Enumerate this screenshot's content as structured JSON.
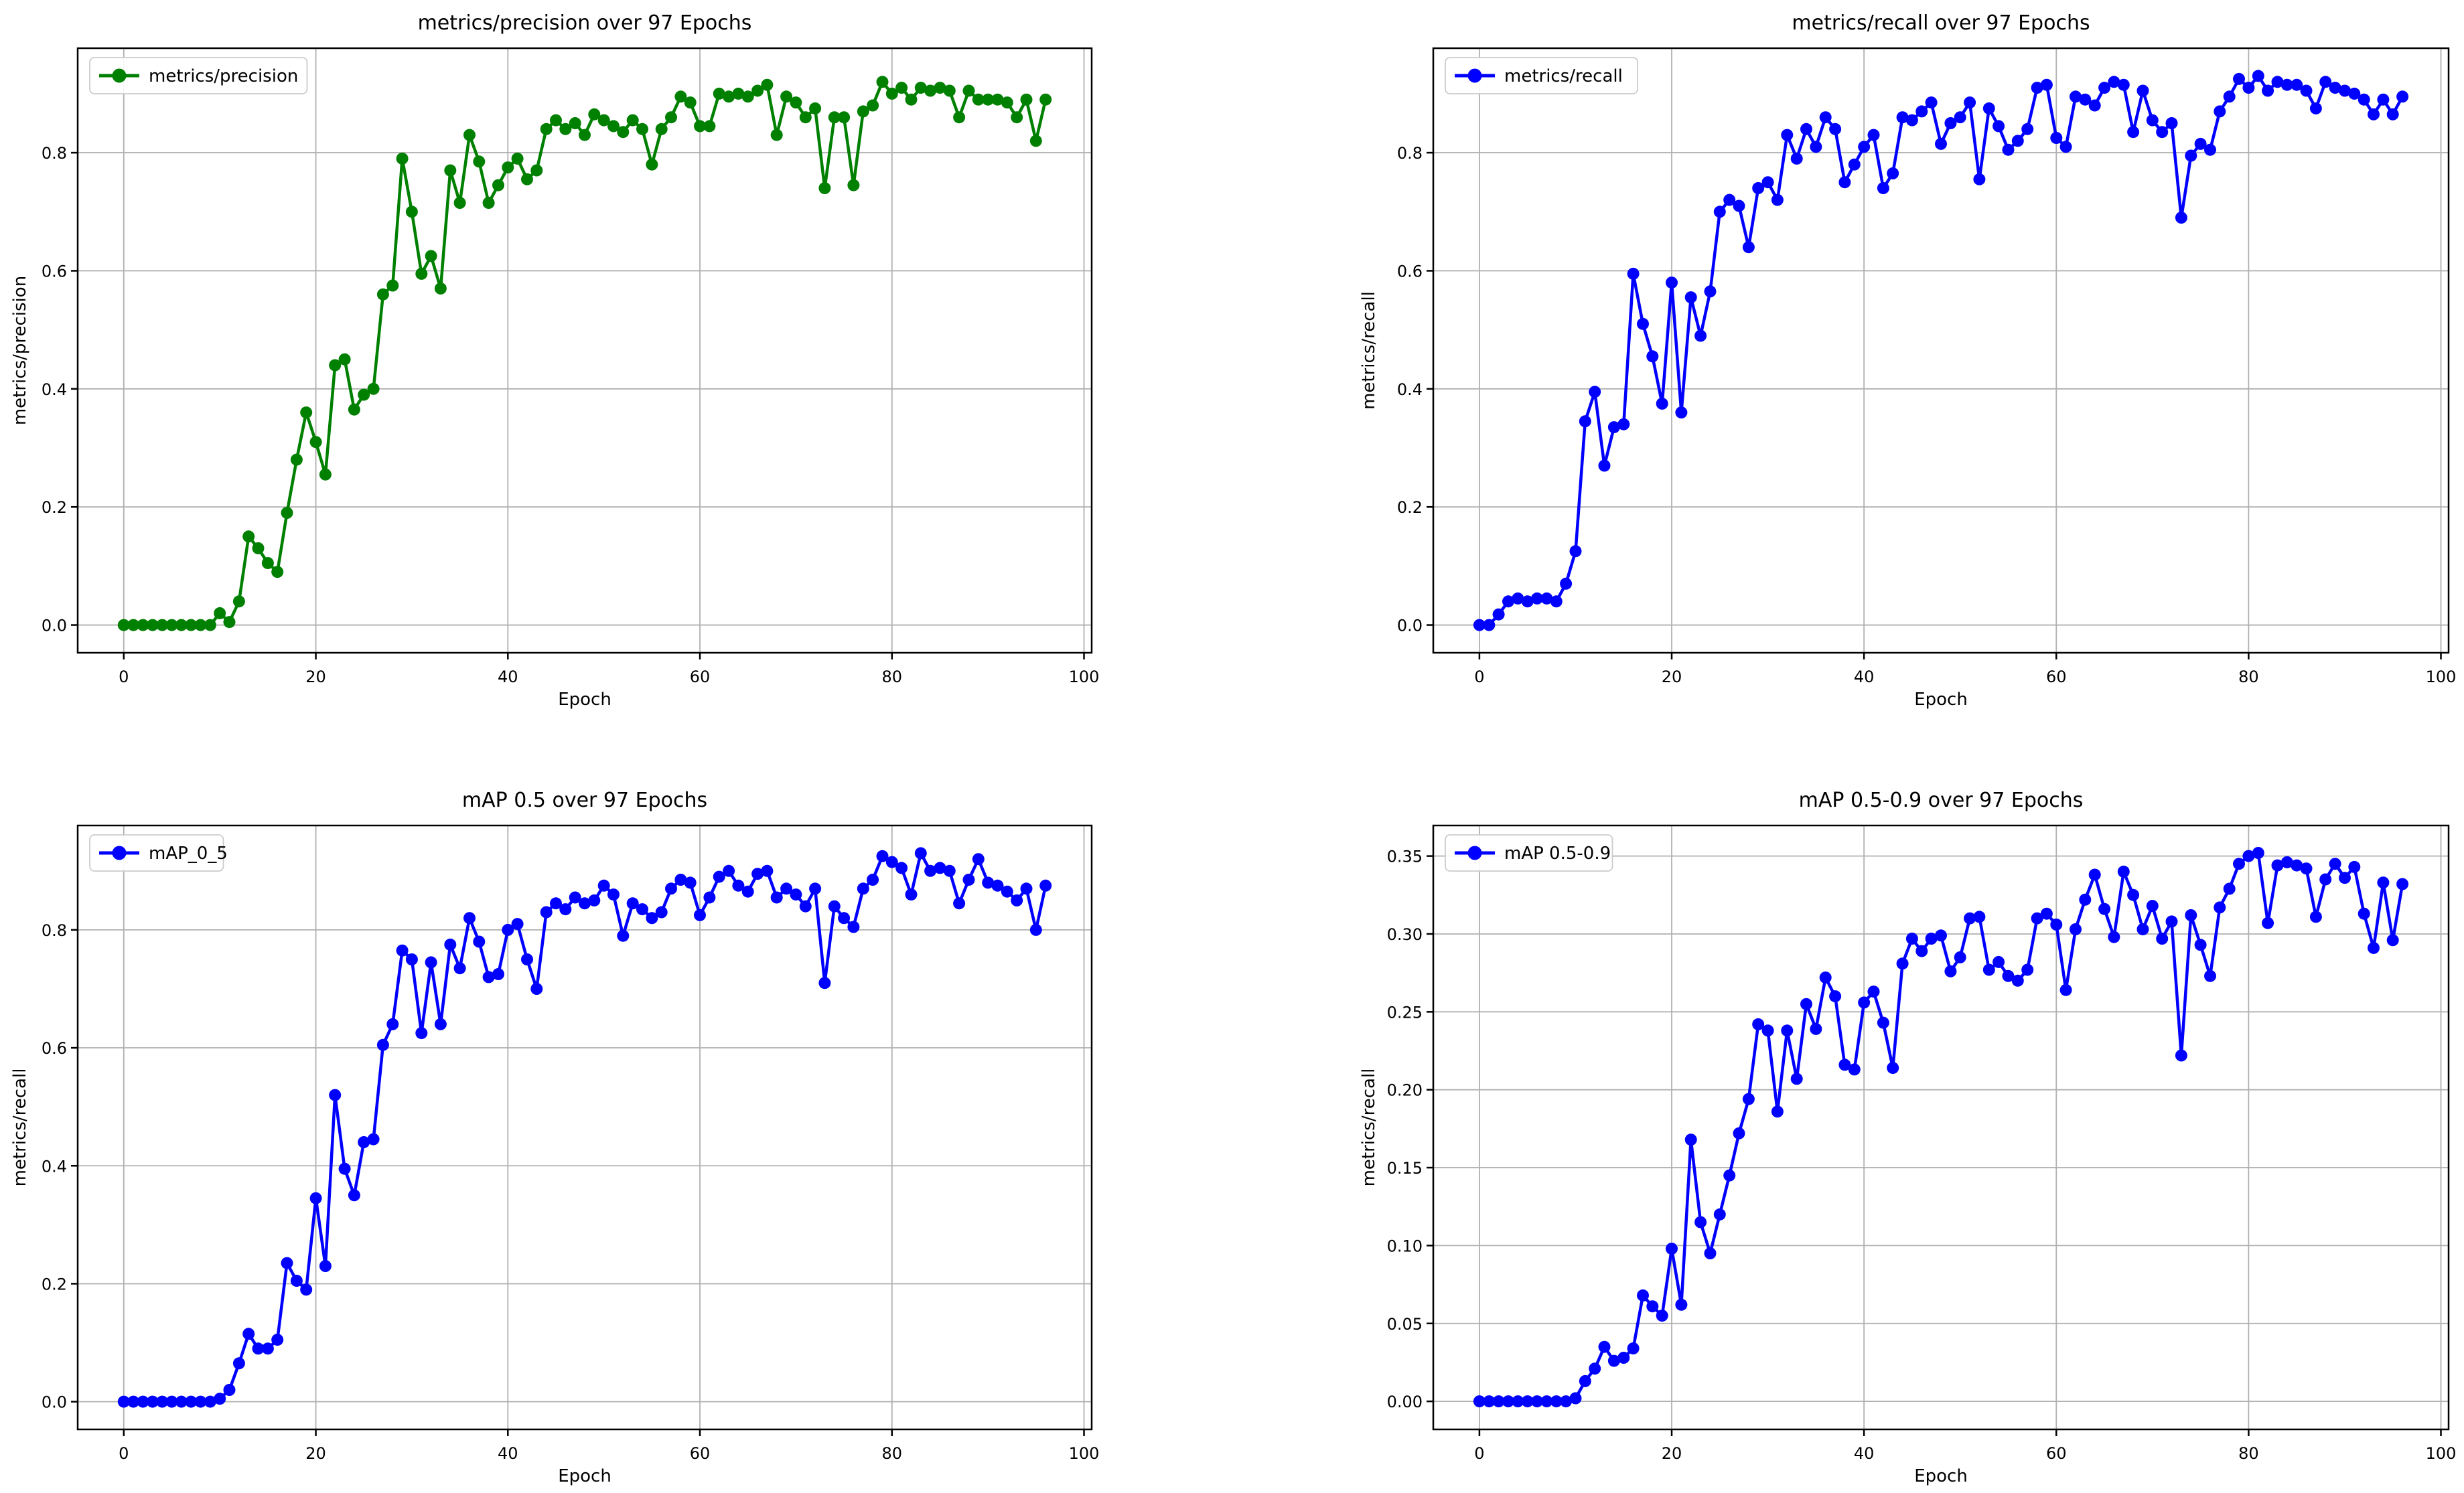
{
  "figure": {
    "background": "#ffffff",
    "grid_color": "#b0b0b0",
    "spine_color": "#000000",
    "legend_border_color": "#cccccc",
    "accent_green": "#008000",
    "accent_blue": "#0000ff"
  },
  "chart_data": [
    {
      "id": "precision",
      "type": "line",
      "title": "metrics/precision over 97 Epochs",
      "xlabel": "Epoch",
      "ylabel": "metrics/precision",
      "legend": "metrics/precision",
      "legend_position": "upper-left",
      "color": "#008000",
      "grid": true,
      "epochs": 97,
      "xlim": [
        -4.8,
        100.8
      ],
      "ylim": [
        -0.047,
        0.977
      ],
      "x_ticks": [
        0,
        20,
        40,
        60,
        80,
        100
      ],
      "y_ticks": [
        0.0,
        0.2,
        0.4,
        0.6,
        0.8
      ],
      "y_tick_decimals": 1,
      "values": [
        0,
        0,
        0,
        0,
        0,
        0,
        0,
        0,
        0,
        0,
        0.02,
        0.005,
        0.04,
        0.15,
        0.13,
        0.105,
        0.09,
        0.19,
        0.28,
        0.36,
        0.31,
        0.255,
        0.44,
        0.45,
        0.365,
        0.39,
        0.4,
        0.56,
        0.575,
        0.79,
        0.7,
        0.595,
        0.625,
        0.57,
        0.77,
        0.715,
        0.83,
        0.785,
        0.715,
        0.745,
        0.775,
        0.79,
        0.755,
        0.77,
        0.84,
        0.855,
        0.84,
        0.85,
        0.83,
        0.865,
        0.855,
        0.845,
        0.835,
        0.855,
        0.84,
        0.78,
        0.84,
        0.86,
        0.895,
        0.885,
        0.845,
        0.845,
        0.9,
        0.895,
        0.9,
        0.895,
        0.905,
        0.915,
        0.83,
        0.895,
        0.885,
        0.86,
        0.875,
        0.74,
        0.86,
        0.86,
        0.745,
        0.87,
        0.88,
        0.92,
        0.9,
        0.91,
        0.89,
        0.91,
        0.905,
        0.91,
        0.905,
        0.86,
        0.905,
        0.89,
        0.89,
        0.89,
        0.885,
        0.86,
        0.89,
        0.82,
        0.89
      ]
    },
    {
      "id": "recall",
      "type": "line",
      "title": "metrics/recall over 97 Epochs",
      "xlabel": "Epoch",
      "ylabel": "metrics/recall",
      "legend": "metrics/recall",
      "legend_position": "upper-left",
      "color": "#0000ff",
      "grid": true,
      "epochs": 97,
      "xlim": [
        -4.8,
        100.8
      ],
      "ylim": [
        -0.047,
        0.977
      ],
      "x_ticks": [
        0,
        20,
        40,
        60,
        80,
        100
      ],
      "y_ticks": [
        0.0,
        0.2,
        0.4,
        0.6,
        0.8
      ],
      "y_tick_decimals": 1,
      "values": [
        0,
        0,
        0.018,
        0.04,
        0.045,
        0.04,
        0.045,
        0.045,
        0.04,
        0.07,
        0.125,
        0.345,
        0.395,
        0.27,
        0.335,
        0.34,
        0.595,
        0.51,
        0.455,
        0.375,
        0.58,
        0.36,
        0.555,
        0.49,
        0.565,
        0.7,
        0.72,
        0.71,
        0.64,
        0.74,
        0.75,
        0.72,
        0.83,
        0.79,
        0.84,
        0.81,
        0.86,
        0.84,
        0.75,
        0.78,
        0.81,
        0.83,
        0.74,
        0.765,
        0.86,
        0.855,
        0.87,
        0.885,
        0.815,
        0.85,
        0.86,
        0.885,
        0.755,
        0.875,
        0.845,
        0.805,
        0.82,
        0.84,
        0.91,
        0.915,
        0.825,
        0.81,
        0.895,
        0.89,
        0.88,
        0.91,
        0.92,
        0.915,
        0.835,
        0.905,
        0.855,
        0.835,
        0.85,
        0.69,
        0.795,
        0.815,
        0.805,
        0.87,
        0.895,
        0.925,
        0.91,
        0.93,
        0.905,
        0.92,
        0.915,
        0.915,
        0.905,
        0.875,
        0.92,
        0.91,
        0.905,
        0.9,
        0.89,
        0.865,
        0.89,
        0.865,
        0.895
      ]
    },
    {
      "id": "map_0_5",
      "type": "line",
      "title": "mAP 0.5 over 97 Epochs",
      "xlabel": "Epoch",
      "ylabel": "metrics/recall",
      "legend": "mAP_0_5",
      "legend_position": "upper-left",
      "color": "#0000ff",
      "grid": true,
      "epochs": 97,
      "xlim": [
        -4.8,
        100.8
      ],
      "ylim": [
        -0.047,
        0.977
      ],
      "x_ticks": [
        0,
        20,
        40,
        60,
        80,
        100
      ],
      "y_ticks": [
        0.0,
        0.2,
        0.4,
        0.6,
        0.8
      ],
      "y_tick_decimals": 1,
      "values": [
        0,
        0,
        0,
        0,
        0,
        0,
        0,
        0,
        0,
        0,
        0.005,
        0.02,
        0.065,
        0.115,
        0.09,
        0.09,
        0.105,
        0.235,
        0.205,
        0.19,
        0.345,
        0.23,
        0.52,
        0.395,
        0.35,
        0.44,
        0.445,
        0.605,
        0.64,
        0.765,
        0.75,
        0.625,
        0.745,
        0.64,
        0.775,
        0.735,
        0.82,
        0.78,
        0.72,
        0.725,
        0.8,
        0.81,
        0.75,
        0.7,
        0.83,
        0.845,
        0.835,
        0.855,
        0.845,
        0.85,
        0.875,
        0.86,
        0.79,
        0.845,
        0.835,
        0.82,
        0.83,
        0.87,
        0.885,
        0.88,
        0.825,
        0.855,
        0.89,
        0.9,
        0.875,
        0.865,
        0.895,
        0.9,
        0.855,
        0.87,
        0.86,
        0.84,
        0.87,
        0.71,
        0.84,
        0.82,
        0.805,
        0.87,
        0.885,
        0.925,
        0.915,
        0.905,
        0.86,
        0.93,
        0.9,
        0.905,
        0.9,
        0.845,
        0.885,
        0.92,
        0.88,
        0.875,
        0.865,
        0.85,
        0.87,
        0.8,
        0.875
      ]
    },
    {
      "id": "map_0_5_0_9",
      "type": "line",
      "title": "mAP 0.5-0.9 over 97 Epochs",
      "xlabel": "Epoch",
      "ylabel": "metrics/recall",
      "legend": "mAP 0.5-0.9",
      "legend_position": "upper-left",
      "color": "#0000ff",
      "grid": true,
      "epochs": 97,
      "xlim": [
        -4.8,
        100.8
      ],
      "ylim": [
        -0.018,
        0.3696
      ],
      "x_ticks": [
        0,
        20,
        40,
        60,
        80,
        100
      ],
      "y_ticks": [
        0.0,
        0.05,
        0.1,
        0.15,
        0.2,
        0.25,
        0.3,
        0.35
      ],
      "y_tick_decimals": 2,
      "values": [
        0,
        0,
        0,
        0,
        0,
        0,
        0,
        0,
        0,
        0,
        0.002,
        0.013,
        0.021,
        0.035,
        0.026,
        0.028,
        0.034,
        0.068,
        0.061,
        0.055,
        0.098,
        0.062,
        0.168,
        0.115,
        0.095,
        0.12,
        0.145,
        0.172,
        0.194,
        0.242,
        0.238,
        0.186,
        0.238,
        0.207,
        0.255,
        0.239,
        0.272,
        0.26,
        0.216,
        0.213,
        0.256,
        0.263,
        0.243,
        0.214,
        0.281,
        0.297,
        0.289,
        0.297,
        0.299,
        0.276,
        0.285,
        0.31,
        0.311,
        0.277,
        0.282,
        0.273,
        0.27,
        0.277,
        0.31,
        0.313,
        0.306,
        0.264,
        0.303,
        0.322,
        0.338,
        0.316,
        0.298,
        0.34,
        0.325,
        0.303,
        0.318,
        0.297,
        0.308,
        0.222,
        0.312,
        0.293,
        0.273,
        0.317,
        0.329,
        0.345,
        0.35,
        0.352,
        0.307,
        0.344,
        0.346,
        0.344,
        0.342,
        0.311,
        0.335,
        0.345,
        0.336,
        0.343,
        0.313,
        0.291,
        0.333,
        0.296,
        0.332
      ]
    }
  ]
}
